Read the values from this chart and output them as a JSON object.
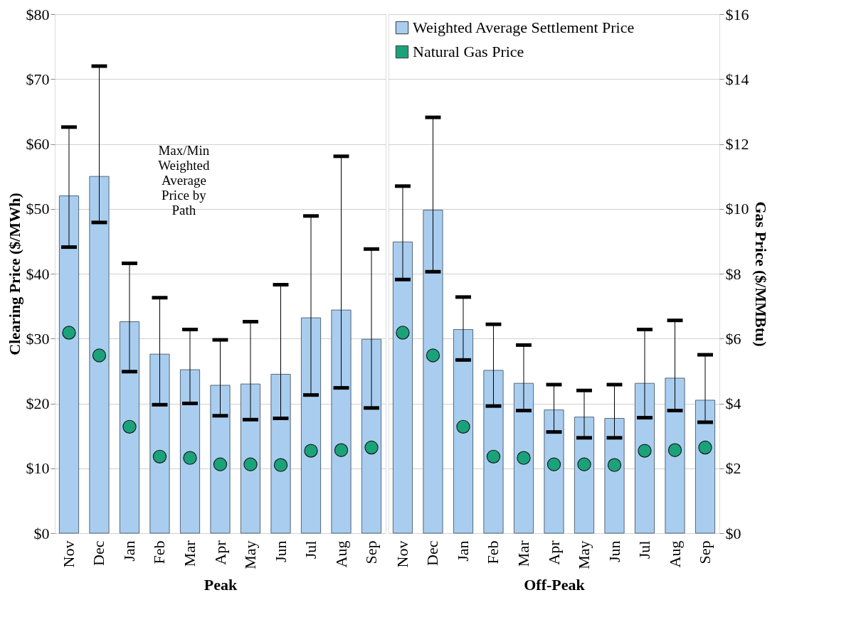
{
  "chart_data": [
    {
      "type": "bar",
      "xlabel": "Peak",
      "ylabel": "Clearing Price ($/MWh)",
      "categories": [
        "Nov",
        "Dec",
        "Jan",
        "Feb",
        "Mar",
        "Apr",
        "May",
        "Jun",
        "Jul",
        "Aug",
        "Sep"
      ],
      "ylim": [
        0,
        80
      ],
      "yticks": [
        {
          "value": 0,
          "label": "$0"
        },
        {
          "value": 10,
          "label": "$10"
        },
        {
          "value": 20,
          "label": "$20"
        },
        {
          "value": 30,
          "label": "$30"
        },
        {
          "value": 40,
          "label": "$40"
        },
        {
          "value": 50,
          "label": "$50"
        },
        {
          "value": 60,
          "label": "$60"
        },
        {
          "value": 70,
          "label": "$70"
        },
        {
          "value": 80,
          "label": "$80"
        }
      ],
      "y2lim": [
        0,
        16
      ],
      "grid": "y",
      "legend": false,
      "tick_labels": [
        "x",
        "y"
      ],
      "annotations": [
        "Max/Min\nWeighted\nAverage\nPrice by\nPath"
      ],
      "series": [
        {
          "type": "bar",
          "color": "#a9cdef",
          "values": [
            52,
            55,
            32.6,
            27.6,
            25.2,
            22.8,
            23,
            24.5,
            33.2,
            34.4,
            29.9
          ],
          "errors": [
            [
              44.1,
              62.6
            ],
            [
              47.9,
              72
            ],
            [
              24.9,
              41.6
            ],
            [
              19.8,
              36.3
            ],
            [
              20,
              31.4
            ],
            [
              18.1,
              29.8
            ],
            [
              17.5,
              32.6
            ],
            [
              17.7,
              38.3
            ],
            [
              21.3,
              48.9
            ],
            [
              22.4,
              58.1
            ],
            [
              19.3,
              43.8
            ]
          ]
        },
        {
          "type": "scatter",
          "axis": "y2",
          "color": "#1aa37a",
          "marker": "circle",
          "values": [
            6.18,
            5.48,
            3.28,
            2.36,
            2.32,
            2.12,
            2.12,
            2.1,
            2.54,
            2.56,
            2.64
          ]
        }
      ]
    },
    {
      "type": "bar",
      "xlabel": "Off-Peak",
      "y2label": "Gas Price ($/MMBtu)",
      "categories": [
        "Nov",
        "Dec",
        "Jan",
        "Feb",
        "Mar",
        "Apr",
        "May",
        "Jun",
        "Jul",
        "Aug",
        "Sep"
      ],
      "ylim": [
        0,
        80
      ],
      "y2lim": [
        0,
        16
      ],
      "y2ticks": [
        {
          "value": 0,
          "label": "$0"
        },
        {
          "value": 2,
          "label": "$2"
        },
        {
          "value": 4,
          "label": "$4"
        },
        {
          "value": 6,
          "label": "$6"
        },
        {
          "value": 8,
          "label": "$8"
        },
        {
          "value": 10,
          "label": "$10"
        },
        {
          "value": 12,
          "label": "$12"
        },
        {
          "value": 14,
          "label": "$14"
        },
        {
          "value": 16,
          "label": "$16"
        }
      ],
      "grid": true,
      "legend": "top left",
      "tick_labels": [
        "x",
        "y2"
      ],
      "series": [
        {
          "name": "Weighted Average Settlement Price",
          "type": "bar",
          "color": "#a9cdef",
          "values": [
            44.9,
            49.8,
            31.4,
            25.1,
            23.1,
            19,
            17.9,
            17.7,
            23.1,
            23.9,
            20.5
          ],
          "errors": [
            [
              39.1,
              53.5
            ],
            [
              40.3,
              64.1
            ],
            [
              26.7,
              36.4
            ],
            [
              19.6,
              32.2
            ],
            [
              18.9,
              29
            ],
            [
              15.6,
              22.9
            ],
            [
              14.7,
              22
            ],
            [
              14.7,
              22.9
            ],
            [
              17.8,
              31.4
            ],
            [
              18.9,
              32.8
            ],
            [
              17.1,
              27.5
            ]
          ]
        },
        {
          "name": "Natural Gas Price",
          "type": "scatter",
          "axis": "y2",
          "color": "#1aa37a",
          "marker": "circle",
          "values": [
            6.18,
            5.48,
            3.28,
            2.36,
            2.32,
            2.12,
            2.12,
            2.1,
            2.54,
            2.56,
            2.64
          ]
        }
      ]
    }
  ]
}
